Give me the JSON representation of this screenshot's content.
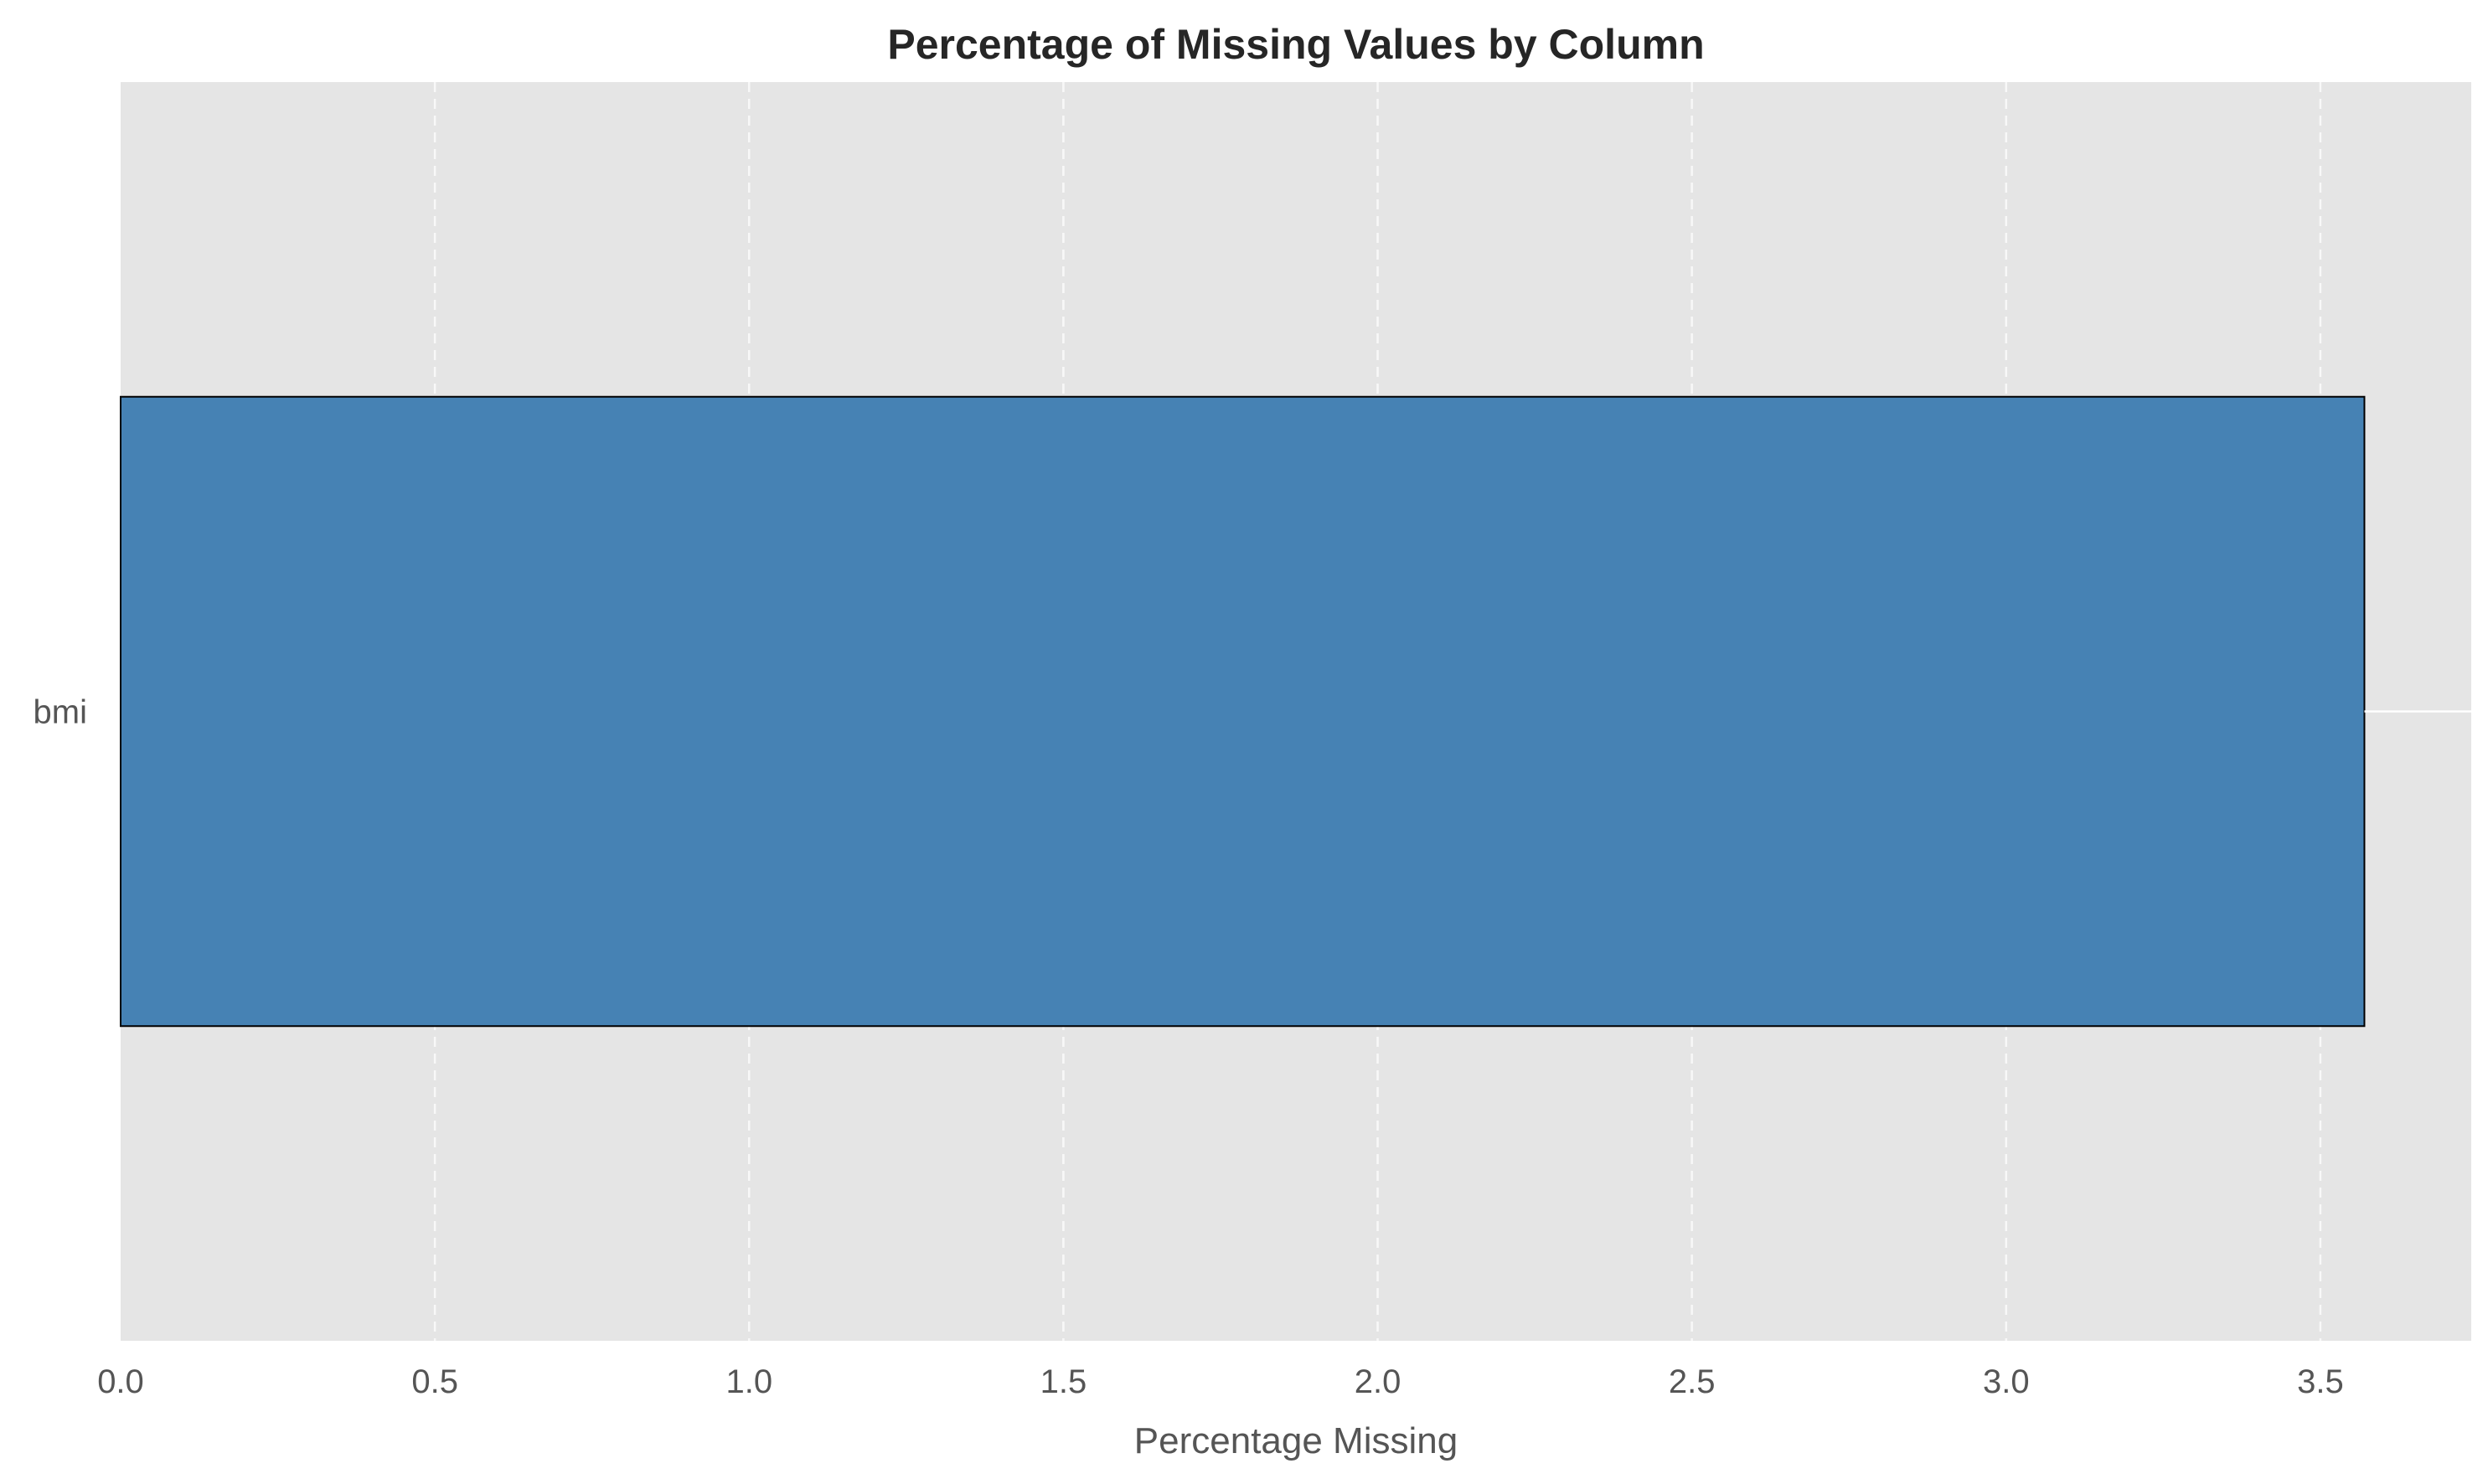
{
  "chart_data": {
    "type": "bar",
    "orientation": "horizontal",
    "title": "Percentage of Missing Values by Column",
    "xlabel": "Percentage Missing",
    "ylabel": "",
    "categories": [
      "bmi"
    ],
    "values": [
      3.57
    ],
    "xlim": [
      0,
      3.74
    ],
    "x_ticks": [
      "0.0",
      "0.5",
      "1.0",
      "1.5",
      "2.0",
      "2.5",
      "3.0",
      "3.5"
    ],
    "grid": true,
    "grid_axis": "x",
    "grid_style": "dashed",
    "legend": "none",
    "colors": {
      "bar_fill": "#4682b4",
      "bar_edge": "#000000",
      "plot_background": "#e5e5e5",
      "grid": "#ffffff"
    }
  }
}
